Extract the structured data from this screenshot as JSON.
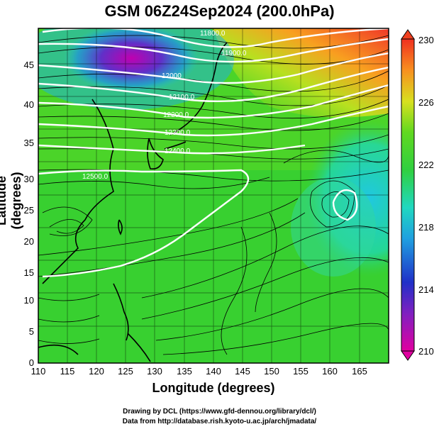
{
  "title": "GSM 06Z24Sep2024 (200.0hPa)",
  "axes": {
    "xlabel": "Longitude (degrees)",
    "ylabel": "Latitude  (degrees)",
    "x_ticks": [
      "110",
      "115",
      "120",
      "125",
      "130",
      "135",
      "140",
      "145",
      "150",
      "155",
      "160",
      "165"
    ],
    "y_ticks": [
      "0",
      "5",
      "10",
      "15",
      "20",
      "25",
      "30",
      "35",
      "40",
      "45"
    ],
    "xlim": [
      110,
      170
    ],
    "ylim": [
      0,
      50
    ]
  },
  "colorbar": {
    "labels": [
      "210",
      "214",
      "218",
      "222",
      "226",
      "230"
    ],
    "range": [
      210,
      230
    ],
    "colors": [
      "#e0009a",
      "#2030c0",
      "#20c8d8",
      "#30d020",
      "#f8d020",
      "#f04020"
    ]
  },
  "contours": {
    "labels": [
      "11800.0",
      "11900.0",
      "12000",
      "12100.0",
      "12200.0",
      "12300.0",
      "12400.0",
      "12500.0"
    ],
    "color": "#ffffff"
  },
  "credits": {
    "line1": "Drawing by DCL (https://www.gfd-dennou.org/library/dcl/)",
    "line2": "Data from http://database.rish.kyoto-u.ac.jp/arch/jmadata/"
  }
}
